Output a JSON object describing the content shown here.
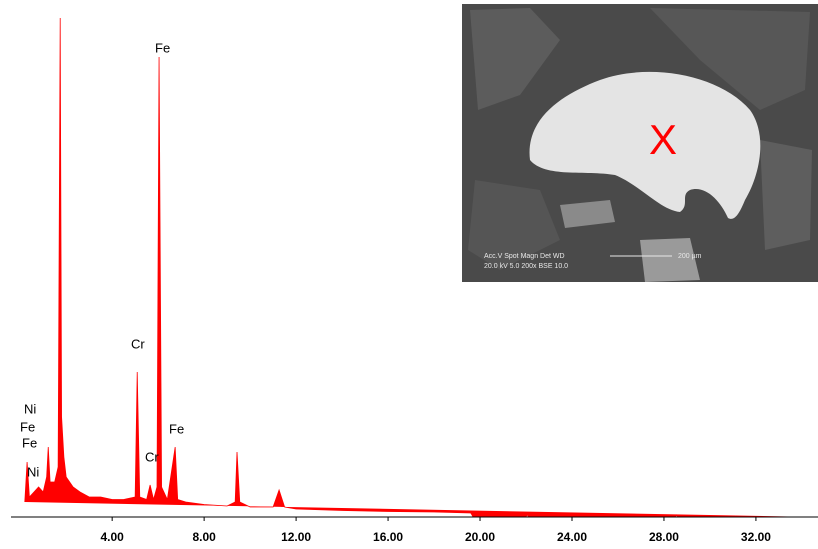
{
  "chart_data": {
    "type": "area",
    "color": "#ff0000",
    "x": [
      0.2,
      0.3,
      0.4,
      0.6,
      0.8,
      1.0,
      1.15,
      1.22,
      1.3,
      1.5,
      1.65,
      1.74,
      1.8,
      1.9,
      2.0,
      2.3,
      2.6,
      3.0,
      3.5,
      4.0,
      4.5,
      5.0,
      5.09,
      5.2,
      5.5,
      5.65,
      5.8,
      5.95,
      6.04,
      6.15,
      6.4,
      6.74,
      6.85,
      7.2,
      8.0,
      9.0,
      9.35,
      9.43,
      9.55,
      10.0,
      11.0,
      11.26,
      11.5,
      12.0,
      14.0,
      16.0,
      18.0,
      19.6,
      19.7,
      22.0,
      22.05,
      22.1,
      28.5,
      28.55,
      28.6,
      34.5
    ],
    "values": [
      3,
      11,
      4,
      5,
      6,
      5,
      8,
      14,
      7,
      7,
      10,
      99.8,
      20,
      12,
      8,
      6,
      5,
      4,
      4,
      3.5,
      3.5,
      4,
      29,
      4,
      3.5,
      6.4,
      3.5,
      6,
      92,
      6,
      3.5,
      14,
      3.5,
      3,
      2.5,
      2.2,
      3,
      13,
      3,
      2,
      2,
      5.4,
      2,
      1.6,
      1.3,
      1.1,
      1,
      0.8,
      0,
      0,
      0.5,
      0,
      0,
      0.4,
      0,
      0
    ],
    "xlim": [
      -0.4,
      34.7
    ],
    "ylim": [
      0,
      100
    ],
    "xticks": [
      {
        "value": 4,
        "label": "4.00"
      },
      {
        "value": 8,
        "label": "8.00"
      },
      {
        "value": 12,
        "label": "12.00"
      },
      {
        "value": 16,
        "label": "16.00"
      },
      {
        "value": 20,
        "label": "20.00"
      },
      {
        "value": 24,
        "label": "24.00"
      },
      {
        "value": 28,
        "label": "28.00"
      },
      {
        "value": 32,
        "label": "32.00"
      }
    ],
    "annotations": [
      "Ni",
      "Fe",
      "Fe",
      "Ni",
      "Cr",
      "Cr",
      "Fe",
      "Fe"
    ]
  },
  "inset": {
    "marker": "X",
    "info_line_1": "Acc.V  Spot Magn   Det  WD",
    "info_line_2": "20.0 kV 5.0  200x   BSE 10.0",
    "scale": "200 µm"
  }
}
